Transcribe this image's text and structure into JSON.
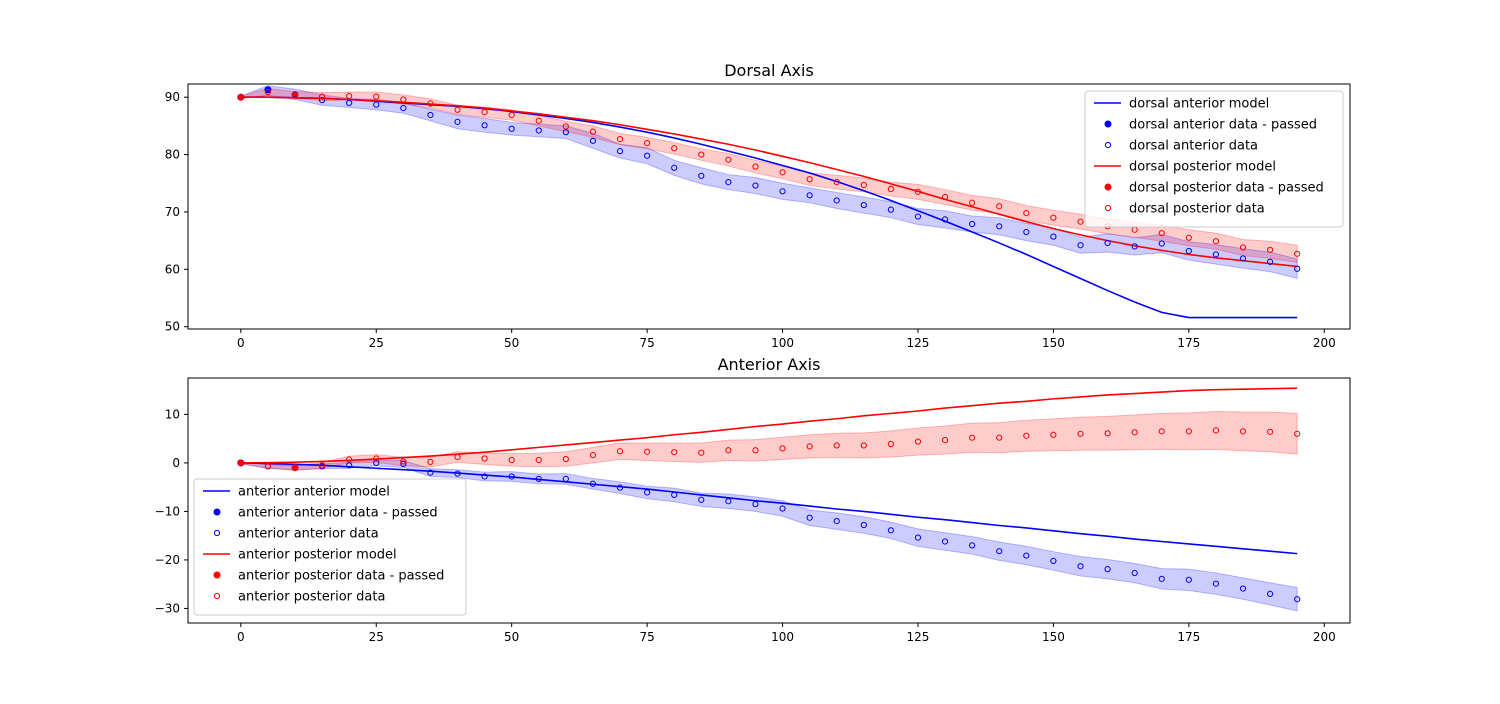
{
  "chart_data": [
    {
      "type": "line",
      "title": "Dorsal Axis",
      "xlabel": "",
      "ylabel": "",
      "xlim": [
        -9.75,
        204.75
      ],
      "ylim": [
        49.6,
        92.3
      ],
      "xticks": [
        0,
        25,
        50,
        75,
        100,
        125,
        150,
        175,
        200
      ],
      "yticks": [
        50,
        60,
        70,
        80,
        90
      ],
      "legend_position": "upper right",
      "grid": false,
      "colors": {
        "anterior": "#0000ff",
        "posterior": "#ff0000"
      },
      "x": [
        0,
        5,
        10,
        15,
        20,
        25,
        30,
        35,
        40,
        45,
        50,
        55,
        60,
        65,
        70,
        75,
        80,
        85,
        90,
        95,
        100,
        105,
        110,
        115,
        120,
        125,
        130,
        135,
        140,
        145,
        150,
        155,
        160,
        165,
        170,
        175,
        180,
        185,
        190,
        195
      ],
      "series": [
        {
          "name": "dorsal anterior model",
          "kind": "model",
          "color": "#0000ff",
          "values": [
            90,
            90,
            89.9,
            89.8,
            89.6,
            89.3,
            89.0,
            88.7,
            88.4,
            88.0,
            87.5,
            86.9,
            86.3,
            85.6,
            84.8,
            83.9,
            82.9,
            81.8,
            80.6,
            79.4,
            78.1,
            76.8,
            75.3,
            73.7,
            72.0,
            70.2,
            68.4,
            66.5,
            64.6,
            62.6,
            60.5,
            58.4,
            56.3,
            54.3,
            52.5,
            51.6,
            51.6,
            51.6,
            51.6,
            51.6
          ]
        },
        {
          "name": "dorsal anterior data - passed",
          "kind": "passed",
          "color": "#0000ff",
          "points": [
            [
              0,
              90.0
            ],
            [
              5,
              91.3
            ]
          ]
        },
        {
          "name": "dorsal anterior data",
          "kind": "data",
          "color": "#0000ff",
          "values": [
            90.0,
            91.3,
            90.5,
            89.5,
            89.0,
            88.7,
            88.1,
            86.9,
            85.7,
            85.1,
            84.5,
            84.2,
            83.9,
            82.4,
            80.6,
            79.8,
            77.7,
            76.3,
            75.2,
            74.6,
            73.6,
            72.9,
            72.0,
            71.2,
            70.4,
            69.2,
            68.7,
            67.9,
            67.5,
            66.5,
            65.7,
            64.2,
            64.6,
            64.0,
            64.5,
            63.2,
            62.6,
            61.9,
            61.3,
            60.1
          ],
          "band_lower": [
            89.8,
            90.3,
            89.6,
            88.6,
            88.2,
            87.8,
            87.2,
            85.9,
            84.5,
            83.9,
            83.4,
            83.1,
            82.8,
            81.1,
            79.4,
            78.4,
            76.4,
            74.9,
            73.9,
            73.2,
            72.2,
            71.6,
            70.6,
            69.8,
            69.0,
            67.8,
            67.2,
            66.5,
            66.0,
            65.0,
            64.2,
            62.8,
            63.0,
            62.5,
            62.9,
            61.6,
            60.9,
            60.2,
            59.6,
            58.4
          ],
          "band_upper": [
            90.2,
            92.0,
            91.4,
            90.4,
            89.8,
            89.6,
            89.0,
            87.9,
            86.9,
            86.3,
            85.6,
            85.3,
            85.0,
            83.7,
            81.8,
            81.2,
            79.0,
            77.7,
            76.5,
            76.0,
            75.0,
            74.2,
            73.4,
            72.6,
            71.8,
            70.6,
            70.2,
            69.3,
            69.0,
            68.0,
            67.2,
            65.6,
            66.2,
            65.5,
            66.1,
            64.8,
            64.3,
            63.6,
            63.0,
            61.8
          ]
        },
        {
          "name": "dorsal posterior model",
          "kind": "model",
          "color": "#ff0000",
          "values": [
            90,
            90,
            89.9,
            89.8,
            89.6,
            89.4,
            89.1,
            88.8,
            88.5,
            88.1,
            87.6,
            87.1,
            86.5,
            85.9,
            85.2,
            84.4,
            83.6,
            82.7,
            81.8,
            80.8,
            79.7,
            78.6,
            77.4,
            76.2,
            74.9,
            73.6,
            72.2,
            70.9,
            69.6,
            68.3,
            67.1,
            66.0,
            65.0,
            64.1,
            63.3,
            62.6,
            62.0,
            61.5,
            61.0,
            60.5
          ]
        },
        {
          "name": "dorsal posterior data - passed",
          "kind": "passed",
          "color": "#ff0000",
          "points": [
            [
              0,
              90.0
            ],
            [
              10,
              90.4
            ]
          ]
        },
        {
          "name": "dorsal posterior data",
          "kind": "data",
          "color": "#ff0000",
          "values": [
            90.0,
            90.9,
            90.4,
            90.1,
            90.2,
            90.1,
            89.6,
            88.9,
            87.8,
            87.4,
            86.9,
            85.9,
            84.9,
            84.0,
            82.7,
            82.0,
            81.1,
            80.0,
            79.1,
            77.9,
            76.9,
            75.7,
            75.2,
            74.7,
            74.0,
            73.5,
            72.6,
            71.6,
            71.0,
            69.8,
            69.0,
            68.3,
            67.5,
            66.9,
            66.3,
            65.5,
            64.9,
            63.8,
            63.4,
            62.7
          ],
          "band_lower": [
            89.8,
            90.3,
            89.8,
            89.4,
            89.5,
            89.3,
            88.8,
            88.1,
            87.0,
            86.5,
            86.0,
            85.0,
            84.0,
            83.0,
            81.7,
            81.0,
            80.1,
            79.0,
            78.0,
            76.8,
            75.8,
            74.6,
            74.0,
            73.5,
            72.8,
            72.2,
            71.3,
            70.3,
            69.7,
            68.5,
            67.7,
            67.0,
            66.2,
            65.6,
            64.9,
            64.1,
            63.5,
            62.4,
            61.9,
            61.2
          ],
          "band_upper": [
            90.2,
            91.5,
            91.0,
            90.8,
            90.9,
            90.9,
            90.4,
            89.7,
            88.6,
            88.3,
            87.8,
            86.8,
            85.8,
            85.0,
            83.7,
            83.0,
            82.1,
            81.0,
            80.2,
            79.0,
            78.0,
            76.8,
            76.4,
            75.9,
            75.2,
            74.8,
            73.9,
            72.9,
            72.3,
            71.1,
            70.3,
            69.6,
            68.8,
            68.2,
            67.7,
            66.9,
            66.3,
            65.2,
            64.9,
            64.2
          ]
        }
      ]
    },
    {
      "type": "line",
      "title": "Anterior Axis",
      "xlabel": "",
      "ylabel": "",
      "xlim": [
        -9.75,
        204.75
      ],
      "ylim": [
        -33,
        17.5
      ],
      "xticks": [
        0,
        25,
        50,
        75,
        100,
        125,
        150,
        175,
        200
      ],
      "yticks": [
        -30,
        -20,
        -10,
        0,
        10
      ],
      "legend_position": "lower left",
      "grid": false,
      "colors": {
        "anterior": "#0000ff",
        "posterior": "#ff0000"
      },
      "x": [
        0,
        5,
        10,
        15,
        20,
        25,
        30,
        35,
        40,
        45,
        50,
        55,
        60,
        65,
        70,
        75,
        80,
        85,
        90,
        95,
        100,
        105,
        110,
        115,
        120,
        125,
        130,
        135,
        140,
        145,
        150,
        155,
        160,
        165,
        170,
        175,
        180,
        185,
        190,
        195
      ],
      "series": [
        {
          "name": "anterior anterior model",
          "kind": "model",
          "color": "#0000ff",
          "values": [
            0,
            -0.1,
            -0.3,
            -0.5,
            -0.8,
            -1.1,
            -1.4,
            -1.7,
            -2.1,
            -2.5,
            -2.9,
            -3.4,
            -3.9,
            -4.4,
            -4.9,
            -5.4,
            -6.0,
            -6.6,
            -7.2,
            -7.8,
            -8.3,
            -8.9,
            -9.5,
            -10.0,
            -10.6,
            -11.2,
            -11.7,
            -12.3,
            -12.9,
            -13.4,
            -14.0,
            -14.6,
            -15.1,
            -15.7,
            -16.2,
            -16.7,
            -17.2,
            -17.7,
            -18.2,
            -18.7
          ]
        },
        {
          "name": "anterior anterior data - passed",
          "kind": "passed",
          "color": "#0000ff",
          "points": [
            [
              0,
              0.0
            ]
          ]
        },
        {
          "name": "anterior anterior data",
          "kind": "data",
          "color": "#0000ff",
          "values": [
            0.0,
            -0.7,
            -1.0,
            -0.7,
            -0.5,
            0.0,
            -0.2,
            -2.0,
            -2.2,
            -2.8,
            -2.8,
            -3.3,
            -3.3,
            -4.3,
            -5.1,
            -6.1,
            -6.6,
            -7.6,
            -7.9,
            -8.5,
            -9.4,
            -11.3,
            -12.0,
            -12.8,
            -13.9,
            -15.4,
            -16.2,
            -17.0,
            -18.2,
            -19.1,
            -20.2,
            -21.3,
            -21.9,
            -22.7,
            -23.9,
            -24.1,
            -24.9,
            -25.9,
            -27.0,
            -28.1
          ],
          "band_lower": [
            -0.2,
            -1.1,
            -1.5,
            -1.2,
            -1.1,
            -0.6,
            -0.9,
            -2.8,
            -3.0,
            -3.7,
            -3.8,
            -4.3,
            -4.4,
            -5.4,
            -6.3,
            -7.4,
            -8.0,
            -9.0,
            -9.4,
            -10.0,
            -11.0,
            -12.9,
            -13.7,
            -14.5,
            -15.6,
            -17.2,
            -18.0,
            -18.8,
            -20.1,
            -21.0,
            -22.1,
            -23.3,
            -23.9,
            -24.7,
            -26.0,
            -26.3,
            -27.1,
            -28.1,
            -29.3,
            -30.5
          ],
          "band_upper": [
            0.2,
            -0.3,
            -0.5,
            -0.2,
            0.1,
            0.6,
            0.5,
            -1.2,
            -1.4,
            -1.9,
            -1.8,
            -2.3,
            -2.2,
            -3.2,
            -3.9,
            -4.8,
            -5.2,
            -6.2,
            -6.4,
            -7.0,
            -7.8,
            -9.7,
            -10.3,
            -11.1,
            -12.2,
            -13.6,
            -14.4,
            -15.2,
            -16.3,
            -17.2,
            -18.3,
            -19.3,
            -19.9,
            -20.7,
            -21.8,
            -21.9,
            -22.7,
            -23.7,
            -24.7,
            -25.7
          ]
        },
        {
          "name": "anterior posterior model",
          "kind": "model",
          "color": "#ff0000",
          "values": [
            0,
            0.05,
            0.15,
            0.3,
            0.5,
            0.8,
            1.1,
            1.4,
            1.8,
            2.2,
            2.7,
            3.2,
            3.7,
            4.2,
            4.7,
            5.2,
            5.8,
            6.3,
            6.9,
            7.5,
            8.0,
            8.6,
            9.1,
            9.7,
            10.2,
            10.7,
            11.3,
            11.8,
            12.3,
            12.7,
            13.2,
            13.6,
            14.0,
            14.3,
            14.6,
            14.9,
            15.1,
            15.2,
            15.3,
            15.4
          ]
        },
        {
          "name": "anterior posterior data - passed",
          "kind": "passed",
          "color": "#ff0000",
          "points": [
            [
              0,
              0.0
            ],
            [
              10,
              -1.0
            ]
          ]
        },
        {
          "name": "anterior posterior data",
          "kind": "data",
          "color": "#ff0000",
          "values": [
            0.0,
            -0.7,
            -1.0,
            -0.5,
            0.7,
            0.9,
            0.3,
            0.2,
            1.2,
            0.9,
            0.6,
            0.6,
            0.8,
            1.6,
            2.4,
            2.3,
            2.2,
            2.1,
            2.6,
            2.6,
            3.0,
            3.4,
            3.6,
            3.6,
            3.9,
            4.4,
            4.7,
            5.2,
            5.2,
            5.6,
            5.8,
            6.0,
            6.1,
            6.3,
            6.5,
            6.5,
            6.7,
            6.5,
            6.4,
            6.0
          ],
          "band_lower": [
            -0.2,
            -1.1,
            -1.5,
            -1.1,
            0.0,
            0.1,
            -0.6,
            -0.8,
            0.1,
            -0.3,
            -0.7,
            -0.8,
            -0.7,
            0.0,
            0.7,
            0.5,
            0.3,
            0.1,
            0.5,
            0.4,
            0.7,
            1.0,
            1.1,
            1.0,
            1.2,
            1.6,
            1.8,
            2.2,
            2.1,
            2.4,
            2.5,
            2.6,
            2.6,
            2.7,
            2.8,
            2.7,
            2.8,
            2.5,
            2.3,
            1.8
          ],
          "band_upper": [
            0.2,
            -0.3,
            -0.5,
            0.1,
            1.4,
            1.7,
            1.2,
            1.2,
            2.3,
            2.1,
            1.9,
            2.0,
            2.3,
            3.2,
            4.1,
            4.1,
            4.1,
            4.1,
            4.7,
            4.8,
            5.3,
            5.8,
            6.1,
            6.2,
            6.6,
            7.2,
            7.6,
            8.2,
            8.3,
            8.8,
            9.1,
            9.4,
            9.6,
            9.9,
            10.2,
            10.3,
            10.6,
            10.5,
            10.5,
            10.2
          ]
        }
      ]
    }
  ]
}
